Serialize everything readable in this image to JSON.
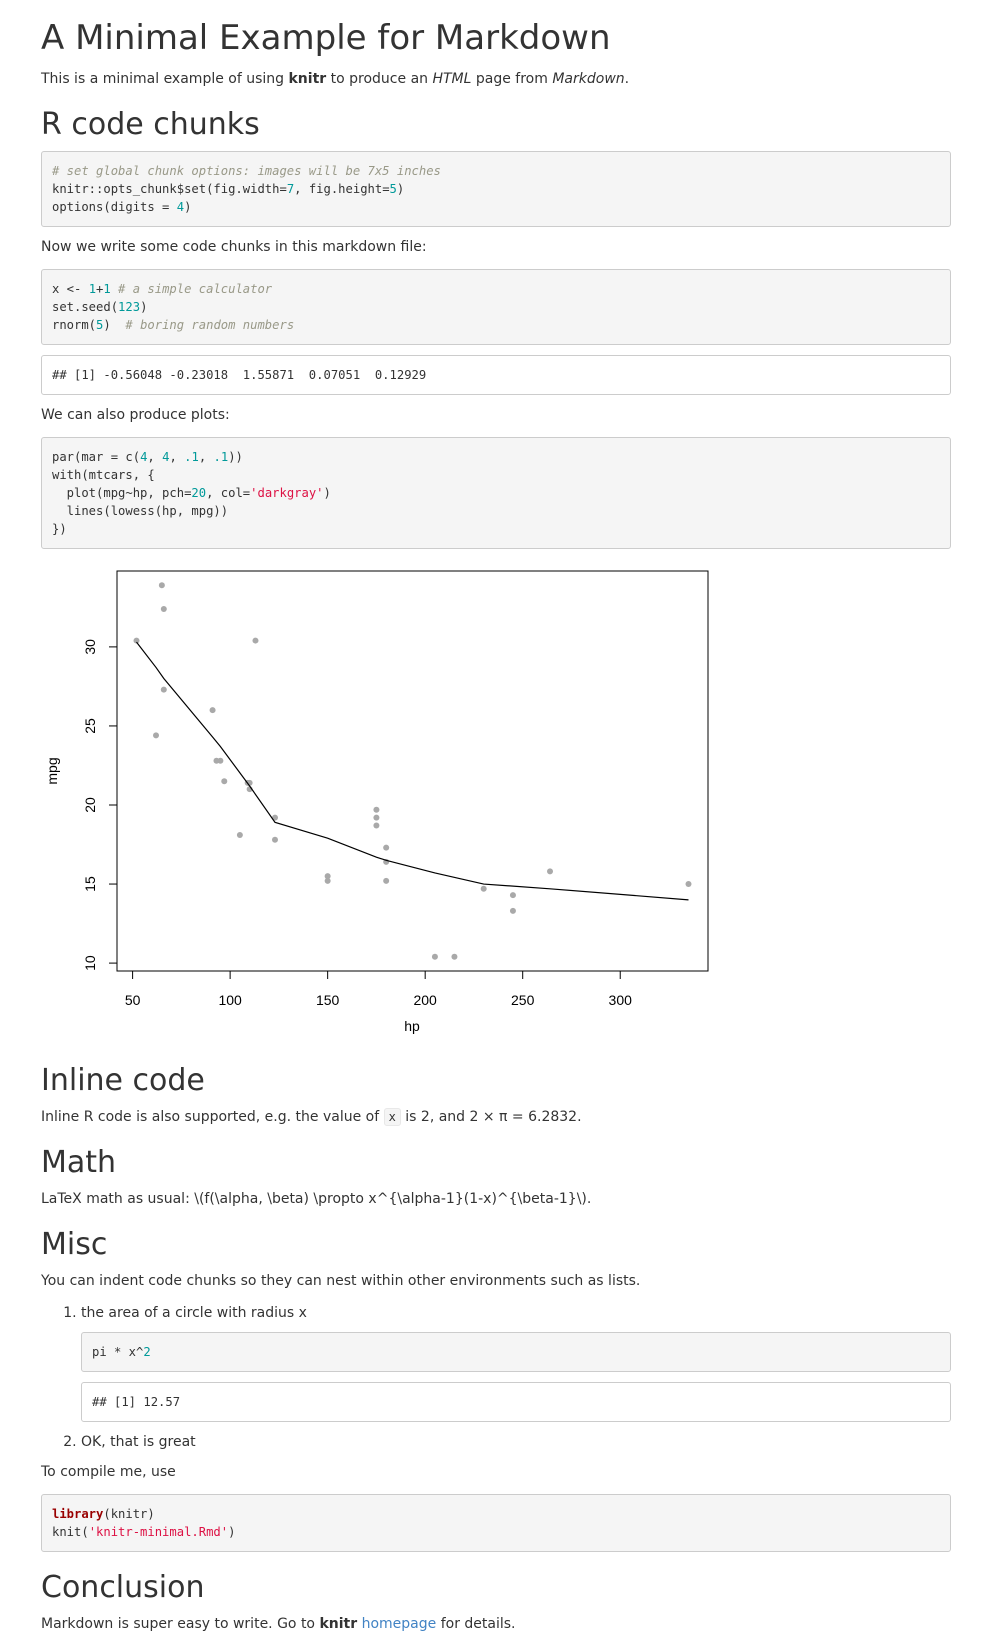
{
  "title": "A Minimal Example for Markdown",
  "intro": {
    "pre": "This is a minimal example of using ",
    "knitr": "knitr",
    "mid": " to produce an ",
    "html": "HTML",
    "mid2": " page from ",
    "markdown": "Markdown",
    "end": "."
  },
  "sections": {
    "rcode": "R code chunks",
    "inline": "Inline code",
    "math": "Math",
    "misc": "Misc",
    "conclusion": "Conclusion"
  },
  "chunk1": {
    "comment": "# set global chunk options: images will be 7x5 inches",
    "l2a": "knitr::opts_chunk$set(fig.width=",
    "l2n1": "7",
    "l2b": ", fig.height=",
    "l2n2": "5",
    "l2c": ")",
    "l3a": "options(digits = ",
    "l3n": "4",
    "l3b": ")"
  },
  "para_chunks": "Now we write some code chunks in this markdown file:",
  "chunk2": {
    "l1a": "x <- ",
    "l1n1": "1",
    "l1op": "+",
    "l1n2": "1",
    "l1c": " # a simple calculator",
    "l2a": "set.seed(",
    "l2n": "123",
    "l2b": ")",
    "l3a": "rnorm(",
    "l3n": "5",
    "l3b": ")  ",
    "l3c": "# boring random numbers"
  },
  "output1": "## [1] -0.56048 -0.23018  1.55871  0.07051  0.12929",
  "para_plots": "We can also produce plots:",
  "chunk3": {
    "l1a": "par(mar = c(",
    "l1n1": "4",
    "l1s1": ", ",
    "l1n2": "4",
    "l1s2": ", ",
    "l1n3": ".1",
    "l1s3": ", ",
    "l1n4": ".1",
    "l1b": "))",
    "l2": "with(mtcars, {",
    "l3a": "  plot(mpg~hp, pch=",
    "l3n": "20",
    "l3b": ", col=",
    "l3s": "'darkgray'",
    "l3c": ")",
    "l4": "  lines(lowess(hp, mpg))",
    "l5": "})"
  },
  "chart_data": {
    "type": "scatter",
    "xlabel": "hp",
    "ylabel": "mpg",
    "xlim": [
      42,
      345
    ],
    "ylim": [
      9.5,
      34.8
    ],
    "xticks": [
      50,
      100,
      150,
      200,
      250,
      300
    ],
    "yticks": [
      10,
      15,
      20,
      25,
      30
    ],
    "point_color": "#a9a9a9",
    "points": [
      [
        52,
        30.4
      ],
      [
        62,
        24.4
      ],
      [
        65,
        33.9
      ],
      [
        66,
        32.4
      ],
      [
        66,
        27.3
      ],
      [
        91,
        26.0
      ],
      [
        93,
        22.8
      ],
      [
        95,
        22.8
      ],
      [
        97,
        21.5
      ],
      [
        105,
        18.1
      ],
      [
        109,
        21.4
      ],
      [
        110,
        21.0
      ],
      [
        110,
        21.4
      ],
      [
        113,
        30.4
      ],
      [
        123,
        19.2
      ],
      [
        123,
        17.8
      ],
      [
        150,
        15.5
      ],
      [
        150,
        15.2
      ],
      [
        175,
        18.7
      ],
      [
        175,
        19.2
      ],
      [
        175,
        19.7
      ],
      [
        180,
        16.4
      ],
      [
        180,
        17.3
      ],
      [
        180,
        15.2
      ],
      [
        205,
        10.4
      ],
      [
        215,
        10.4
      ],
      [
        230,
        14.7
      ],
      [
        245,
        14.3
      ],
      [
        245,
        13.3
      ],
      [
        264,
        15.8
      ],
      [
        335,
        15.0
      ]
    ],
    "lowess": [
      [
        52,
        30.3
      ],
      [
        62,
        28.7
      ],
      [
        66,
        28.0
      ],
      [
        91,
        24.3
      ],
      [
        95,
        23.7
      ],
      [
        110,
        21.2
      ],
      [
        123,
        18.9
      ],
      [
        150,
        17.9
      ],
      [
        175,
        16.7
      ],
      [
        180,
        16.5
      ],
      [
        205,
        15.7
      ],
      [
        230,
        15.0
      ],
      [
        264,
        14.7
      ],
      [
        335,
        14.0
      ]
    ],
    "line_color": "#000000"
  },
  "inline": {
    "pre": "Inline R code is also supported, e.g. the value of ",
    "code": "x",
    "post": " is 2, and 2 × π = 6.2832."
  },
  "math_text": "LaTeX math as usual: \\(f(\\alpha, \\beta) \\propto x^{\\alpha-1}(1-x)^{\\beta-1}\\).",
  "misc_text": "You can indent code chunks so they can nest within other environments such as lists.",
  "list": {
    "item1": "the area of a circle with radius x",
    "code_a": "pi * x^",
    "code_n": "2",
    "output": "## [1] 12.57",
    "item2": "OK, that is great"
  },
  "compile_text": "To compile me, use",
  "chunk4": {
    "kw": "library",
    "l1b": "(knitr)",
    "l2a": "knit(",
    "l2s": "'knitr-minimal.Rmd'",
    "l2b": ")"
  },
  "conclusion": {
    "pre": "Markdown is super easy to write. Go to ",
    "knitr": "knitr",
    "sp": " ",
    "link": "homepage",
    "post": " for details."
  }
}
